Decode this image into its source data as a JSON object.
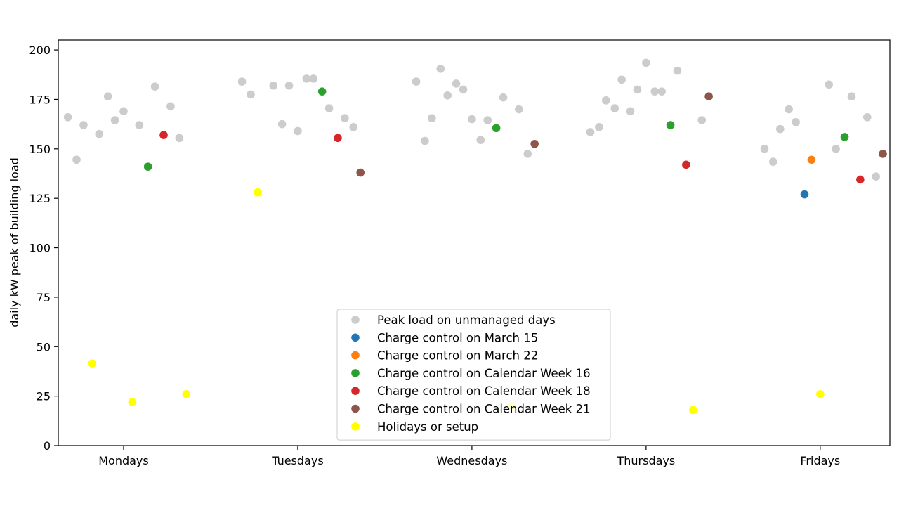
{
  "chart_data": {
    "type": "scatter",
    "title": "",
    "xlabel": "",
    "ylabel": "daily kW peak of building load",
    "ylim": [
      0,
      205
    ],
    "yticks": [
      0,
      25,
      50,
      75,
      100,
      125,
      150,
      175,
      200
    ],
    "xlim": [
      -0.375,
      4.4
    ],
    "categories": [
      "Mondays",
      "Tuesdays",
      "Wednesdays",
      "Thursdays",
      "Fridays"
    ],
    "grid": false,
    "legend_position": "bottom-center",
    "series": [
      {
        "name": "Peak load on unmanaged days",
        "color": "#cccccc",
        "points": [
          {
            "x": -0.32,
            "y": 166
          },
          {
            "x": -0.27,
            "y": 144.5
          },
          {
            "x": -0.23,
            "y": 162
          },
          {
            "x": -0.14,
            "y": 157.5
          },
          {
            "x": -0.09,
            "y": 176.5
          },
          {
            "x": -0.05,
            "y": 164.5
          },
          {
            "x": 0.0,
            "y": 169
          },
          {
            "x": 0.09,
            "y": 162
          },
          {
            "x": 0.18,
            "y": 181.5
          },
          {
            "x": 0.27,
            "y": 171.5
          },
          {
            "x": 0.32,
            "y": 155.5
          },
          {
            "x": 0.68,
            "y": 184
          },
          {
            "x": 0.73,
            "y": 177.5
          },
          {
            "x": 0.86,
            "y": 182
          },
          {
            "x": 0.91,
            "y": 162.5
          },
          {
            "x": 0.95,
            "y": 182
          },
          {
            "x": 1.0,
            "y": 159
          },
          {
            "x": 1.05,
            "y": 185.5
          },
          {
            "x": 1.09,
            "y": 185.5
          },
          {
            "x": 1.18,
            "y": 170.5
          },
          {
            "x": 1.27,
            "y": 165.5
          },
          {
            "x": 1.32,
            "y": 161
          },
          {
            "x": 1.68,
            "y": 184
          },
          {
            "x": 1.73,
            "y": 154
          },
          {
            "x": 1.77,
            "y": 165.5
          },
          {
            "x": 1.82,
            "y": 190.5
          },
          {
            "x": 1.86,
            "y": 177
          },
          {
            "x": 1.91,
            "y": 183
          },
          {
            "x": 1.95,
            "y": 180
          },
          {
            "x": 2.0,
            "y": 165
          },
          {
            "x": 2.05,
            "y": 154.5
          },
          {
            "x": 2.09,
            "y": 164.5
          },
          {
            "x": 2.18,
            "y": 176
          },
          {
            "x": 2.27,
            "y": 170
          },
          {
            "x": 2.32,
            "y": 147.5
          },
          {
            "x": 2.68,
            "y": 158.5
          },
          {
            "x": 2.73,
            "y": 161
          },
          {
            "x": 2.77,
            "y": 174.5
          },
          {
            "x": 2.82,
            "y": 170.5
          },
          {
            "x": 2.86,
            "y": 185
          },
          {
            "x": 2.91,
            "y": 169
          },
          {
            "x": 2.95,
            "y": 180
          },
          {
            "x": 3.0,
            "y": 193.5
          },
          {
            "x": 3.05,
            "y": 179
          },
          {
            "x": 3.09,
            "y": 179
          },
          {
            "x": 3.18,
            "y": 189.5
          },
          {
            "x": 3.32,
            "y": 164.5
          },
          {
            "x": 3.68,
            "y": 150
          },
          {
            "x": 3.73,
            "y": 143.5
          },
          {
            "x": 3.77,
            "y": 160
          },
          {
            "x": 3.82,
            "y": 170
          },
          {
            "x": 3.86,
            "y": 163.5
          },
          {
            "x": 4.05,
            "y": 182.5
          },
          {
            "x": 4.09,
            "y": 150
          },
          {
            "x": 4.18,
            "y": 176.5
          },
          {
            "x": 4.27,
            "y": 166
          },
          {
            "x": 4.32,
            "y": 136
          }
        ]
      },
      {
        "name": "Charge control on March 15",
        "color": "#1f77b4",
        "points": [
          {
            "x": 3.91,
            "y": 127
          }
        ]
      },
      {
        "name": "Charge control on March 22",
        "color": "#ff7f0e",
        "points": [
          {
            "x": 3.95,
            "y": 144.5
          }
        ]
      },
      {
        "name": "Charge control on Calendar Week 16",
        "color": "#2ca02c",
        "points": [
          {
            "x": 0.14,
            "y": 141
          },
          {
            "x": 1.14,
            "y": 179
          },
          {
            "x": 2.14,
            "y": 160.5
          },
          {
            "x": 3.14,
            "y": 162
          },
          {
            "x": 4.14,
            "y": 156
          }
        ]
      },
      {
        "name": "Charge control on Calendar Week 18",
        "color": "#d62728",
        "points": [
          {
            "x": 0.23,
            "y": 157
          },
          {
            "x": 1.23,
            "y": 155.5
          },
          {
            "x": 3.23,
            "y": 142
          },
          {
            "x": 4.23,
            "y": 134.5
          }
        ]
      },
      {
        "name": "Charge control on Calendar Week 21",
        "color": "#8c564b",
        "points": [
          {
            "x": 1.36,
            "y": 138
          },
          {
            "x": 2.36,
            "y": 152.5
          },
          {
            "x": 3.36,
            "y": 176.5
          },
          {
            "x": 4.36,
            "y": 147.5
          }
        ]
      },
      {
        "name": "Holidays or setup",
        "color": "#ffff00",
        "points": [
          {
            "x": -0.18,
            "y": 41.5
          },
          {
            "x": 0.05,
            "y": 22
          },
          {
            "x": 0.36,
            "y": 26
          },
          {
            "x": 0.77,
            "y": 128
          },
          {
            "x": 2.23,
            "y": 20
          },
          {
            "x": 3.27,
            "y": 18
          },
          {
            "x": 4.0,
            "y": 26
          }
        ]
      }
    ]
  }
}
